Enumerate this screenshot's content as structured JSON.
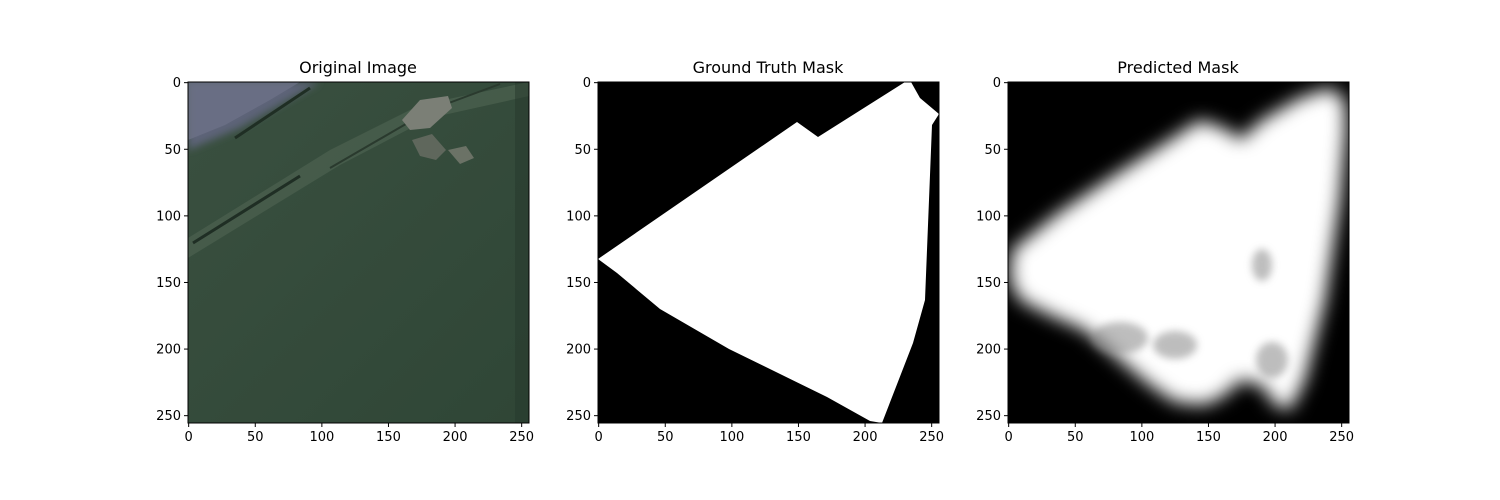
{
  "panels": [
    {
      "title": "Original Image",
      "xticks": [
        "0",
        "50",
        "100",
        "150",
        "200",
        "250"
      ],
      "yticks": [
        "0",
        "50",
        "100",
        "150",
        "200",
        "250"
      ]
    },
    {
      "title": "Ground Truth Mask",
      "xticks": [
        "0",
        "50",
        "100",
        "150",
        "200",
        "250"
      ],
      "yticks": [
        "0",
        "50",
        "100",
        "150",
        "200",
        "250"
      ]
    },
    {
      "title": "Predicted Mask",
      "xticks": [
        "0",
        "50",
        "100",
        "150",
        "200",
        "250"
      ],
      "yticks": [
        "0",
        "50",
        "100",
        "150",
        "200",
        "250"
      ]
    }
  ],
  "colors": {
    "field": "#34493a",
    "field_light": "#3d5543",
    "mask_bg": "#000000",
    "mask_fg": "#ffffff"
  }
}
